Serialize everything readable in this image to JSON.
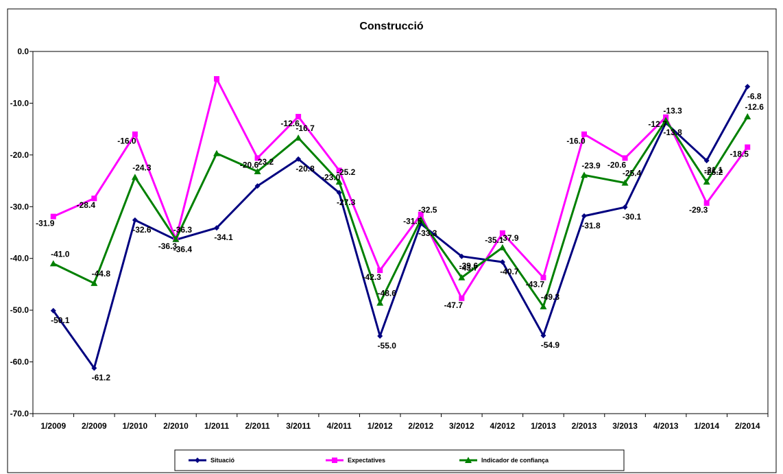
{
  "chart_data": {
    "type": "line",
    "title": "Construcció",
    "xlabel": "",
    "ylabel": "",
    "ylim": [
      -70,
      0
    ],
    "yticks": [
      "0.0",
      "-10.0",
      "-20.0",
      "-30.0",
      "-40.0",
      "-50.0",
      "-60.0",
      "-70.0"
    ],
    "grid": false,
    "legend_position": "bottom",
    "categories": [
      "1/2009",
      "2/2009",
      "1/2010",
      "2/2010",
      "1/2011",
      "2/2011",
      "3/2011",
      "4/2011",
      "1/2012",
      "2/2012",
      "3/2012",
      "4/2012",
      "1/2013",
      "2/2013",
      "3/2013",
      "4/2013",
      "1/2014",
      "2/2014"
    ],
    "series": [
      {
        "name": "Situació",
        "color": "#000080",
        "marker": "diamond",
        "values": [
          -50.1,
          -61.2,
          -32.6,
          -36.4,
          -34.1,
          -26.0,
          -20.8,
          -27.3,
          -55.0,
          -33.3,
          -39.6,
          -40.7,
          -54.9,
          -31.8,
          -30.1,
          -13.8,
          -21.1,
          -6.8
        ],
        "labels": [
          "-50.1",
          "-61.2",
          "-32.6",
          "-36.4",
          "-34.1",
          "",
          "-20.8",
          "-27.3",
          "-55.0",
          "-33.3",
          "-39.6",
          "-40.7",
          "-54.9",
          "-31.8",
          "-30.1",
          "-13.8",
          "-21.1",
          "-6.8"
        ]
      },
      {
        "name": "Expectatives",
        "color": "#ff00ff",
        "marker": "square",
        "values": [
          -31.9,
          -28.4,
          -16.0,
          -36.3,
          -5.3,
          -20.6,
          -12.6,
          -23.0,
          -42.3,
          -31.5,
          -47.7,
          -35.1,
          -43.7,
          -16.0,
          -20.6,
          -12.7,
          -29.3,
          -18.5
        ],
        "labels": [
          "-31.9",
          "-28.4",
          "-16.0",
          "-36.3",
          "",
          "-20.6",
          "-12.6",
          "-23.0",
          "-42.3",
          "-31.5",
          "-47.7",
          "-35.1",
          "-43.7",
          "-16.0",
          "-20.6",
          "-12.7",
          "-29.3",
          "-18.5"
        ]
      },
      {
        "name": "Indicador de confiança",
        "color": "#008000",
        "marker": "triangle",
        "values": [
          -41.0,
          -44.8,
          -24.3,
          -36.3,
          -19.7,
          -23.2,
          -16.7,
          -25.2,
          -48.6,
          -32.5,
          -43.7,
          -37.9,
          -49.3,
          -23.9,
          -25.4,
          -13.3,
          -25.2,
          -12.6
        ],
        "labels": [
          "-41.0",
          "-44.8",
          "-24.3",
          "-36.3",
          "",
          "-23.2",
          "-16.7",
          "-25.2",
          "-48.6",
          "-32.5",
          "-43.7",
          "-37.9",
          "-49.3",
          "-23.9",
          "-25.4",
          "-13.3",
          "-25.2",
          "-12.6"
        ]
      }
    ]
  }
}
